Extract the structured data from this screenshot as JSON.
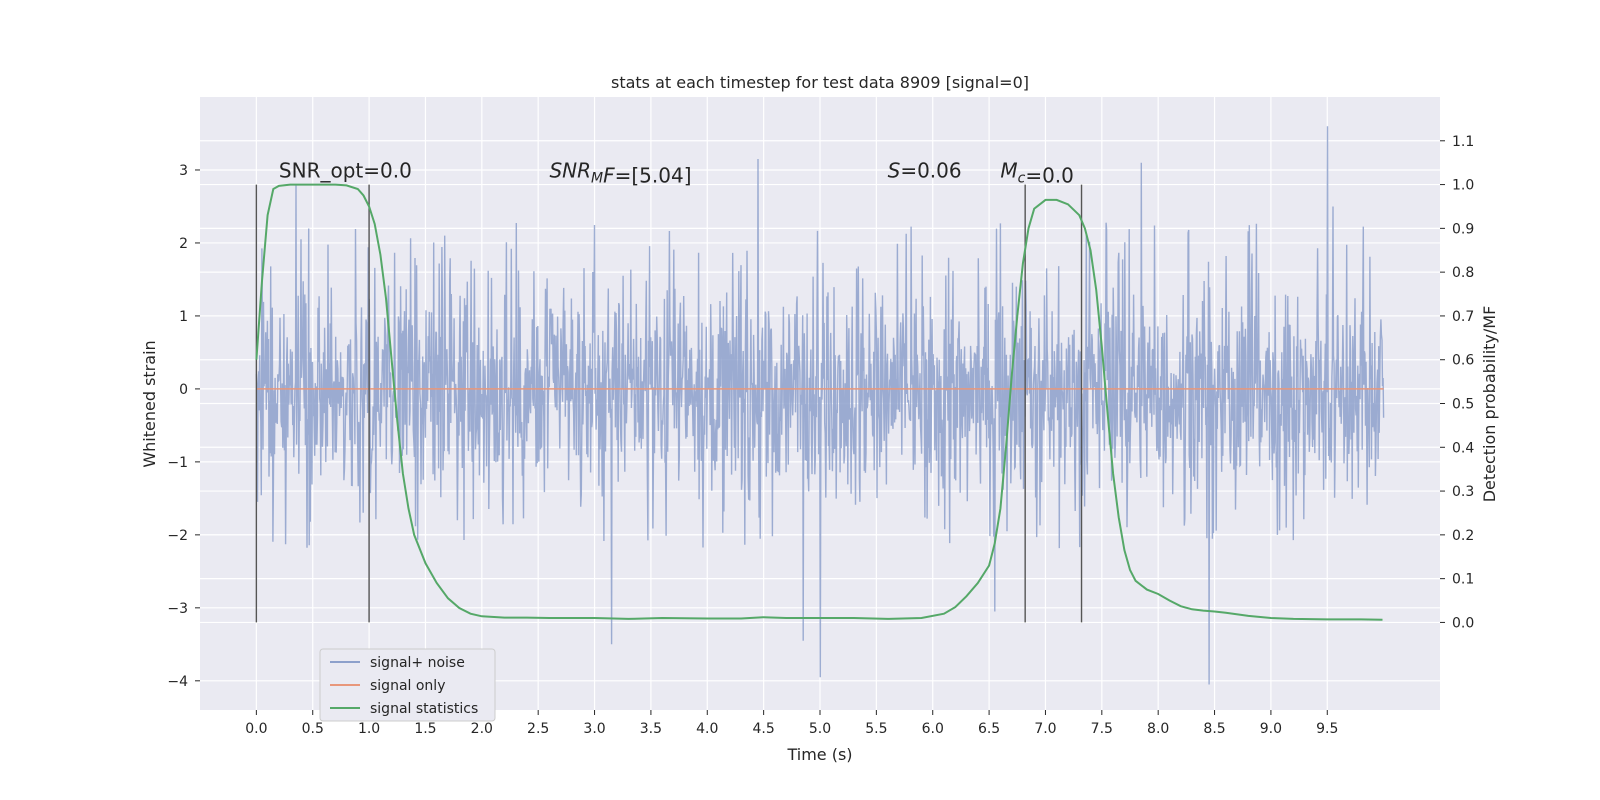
{
  "chart_data": {
    "type": "line",
    "title": "stats at each timestep for test data 8909 [signal=0]",
    "xlabel": "Time (s)",
    "ylabel": "Whitened strain",
    "ylabel_right": "Detection probability/MF",
    "xlim": [
      -0.5,
      10.5
    ],
    "ylim": [
      -4.4,
      4.0
    ],
    "ylim_right": [
      -0.2,
      1.2
    ],
    "x_ticks": [
      0.0,
      0.5,
      1.0,
      1.5,
      2.0,
      2.5,
      3.0,
      3.5,
      4.0,
      4.5,
      5.0,
      5.5,
      6.0,
      6.5,
      7.0,
      7.5,
      8.0,
      8.5,
      9.0,
      9.5
    ],
    "x_tick_labels": [
      "0.0",
      "0.5",
      "1.0",
      "1.5",
      "2.0",
      "2.5",
      "3.0",
      "3.5",
      "4.0",
      "4.5",
      "5.0",
      "5.5",
      "6.0",
      "6.5",
      "7.0",
      "7.5",
      "8.0",
      "8.5",
      "9.0",
      "9.5"
    ],
    "y_ticks": [
      -4,
      -3,
      -2,
      -1,
      0,
      1,
      2,
      3
    ],
    "y_tick_labels": [
      "−4",
      "−3",
      "−2",
      "−1",
      "0",
      "1",
      "2",
      "3"
    ],
    "y_right_ticks": [
      0.0,
      0.1,
      0.2,
      0.3,
      0.4,
      0.5,
      0.6,
      0.7,
      0.8,
      0.9,
      1.0,
      1.1
    ],
    "y_right_tick_labels": [
      "0.0",
      "0.1",
      "0.2",
      "0.3",
      "0.4",
      "0.5",
      "0.6",
      "0.7",
      "0.8",
      "0.9",
      "1.0",
      "1.1"
    ],
    "grid": true,
    "legend_position": "lower-left",
    "series": [
      {
        "name": "signal+ noise",
        "color": "#8da0cb",
        "axis": "left",
        "style": "noise",
        "x_range": [
          0.0,
          10.0
        ],
        "typical_range": [
          -1.5,
          1.6
        ],
        "extremes": [
          {
            "x": 0.35,
            "y": 2.8
          },
          {
            "x": 3.15,
            "y": -3.5
          },
          {
            "x": 4.45,
            "y": 3.15
          },
          {
            "x": 4.85,
            "y": -3.45
          },
          {
            "x": 5.0,
            "y": -3.95
          },
          {
            "x": 6.55,
            "y": -3.05
          },
          {
            "x": 7.85,
            "y": 3.1
          },
          {
            "x": 8.45,
            "y": -4.05
          },
          {
            "x": 9.5,
            "y": 3.6
          },
          {
            "x": 9.55,
            "y": 2.5
          }
        ]
      },
      {
        "name": "signal only",
        "color": "#e8977b",
        "axis": "left",
        "x": [
          0.0,
          10.0
        ],
        "y": [
          0.0,
          0.0
        ]
      },
      {
        "name": "signal statistics",
        "color": "#55a868",
        "axis": "right",
        "x": [
          0.0,
          0.05,
          0.1,
          0.15,
          0.2,
          0.3,
          0.4,
          0.5,
          0.6,
          0.7,
          0.8,
          0.9,
          0.95,
          1.0,
          1.05,
          1.1,
          1.15,
          1.2,
          1.25,
          1.3,
          1.35,
          1.4,
          1.5,
          1.6,
          1.7,
          1.8,
          1.9,
          2.0,
          2.2,
          2.4,
          2.6,
          2.8,
          3.0,
          3.3,
          3.6,
          4.0,
          4.3,
          4.5,
          4.7,
          5.0,
          5.3,
          5.6,
          5.9,
          6.1,
          6.2,
          6.3,
          6.4,
          6.5,
          6.55,
          6.6,
          6.65,
          6.7,
          6.75,
          6.8,
          6.85,
          6.9,
          7.0,
          7.1,
          7.2,
          7.3,
          7.35,
          7.4,
          7.45,
          7.5,
          7.55,
          7.6,
          7.65,
          7.7,
          7.75,
          7.8,
          7.9,
          8.0,
          8.1,
          8.2,
          8.3,
          8.4,
          8.5,
          8.6,
          8.8,
          9.0,
          9.2,
          9.5,
          9.8,
          9.99
        ],
        "y": [
          0.6,
          0.78,
          0.93,
          0.99,
          0.997,
          1.0,
          1.0,
          1.0,
          1.0,
          1.0,
          0.998,
          0.99,
          0.975,
          0.95,
          0.91,
          0.84,
          0.74,
          0.6,
          0.46,
          0.34,
          0.26,
          0.2,
          0.135,
          0.09,
          0.055,
          0.033,
          0.02,
          0.014,
          0.011,
          0.011,
          0.01,
          0.01,
          0.01,
          0.008,
          0.01,
          0.009,
          0.009,
          0.012,
          0.01,
          0.01,
          0.01,
          0.008,
          0.01,
          0.02,
          0.035,
          0.06,
          0.09,
          0.13,
          0.18,
          0.26,
          0.4,
          0.56,
          0.7,
          0.82,
          0.9,
          0.945,
          0.965,
          0.965,
          0.955,
          0.93,
          0.9,
          0.85,
          0.76,
          0.63,
          0.48,
          0.34,
          0.24,
          0.165,
          0.12,
          0.095,
          0.075,
          0.065,
          0.05,
          0.037,
          0.03,
          0.027,
          0.025,
          0.022,
          0.015,
          0.01,
          0.008,
          0.007,
          0.007,
          0.006
        ]
      }
    ],
    "vertical_lines": [
      {
        "x": 0.0,
        "y_top": 2.8,
        "y_bottom": -3.2
      },
      {
        "x": 1.0,
        "y_top": 2.8,
        "y_bottom": -3.2
      },
      {
        "x": 6.82,
        "y_top": 2.8,
        "y_bottom": -3.2
      },
      {
        "x": 7.32,
        "y_top": 2.8,
        "y_bottom": -3.2
      }
    ],
    "annotations": [
      {
        "id": "snr-opt",
        "text": "SNR_opt=0.0",
        "x": 0.2,
        "y": 2.9
      },
      {
        "id": "snr-mf",
        "x": 2.6,
        "y": 2.9,
        "parts": [
          {
            "text": "SNR",
            "italic": true,
            "sub": false
          },
          {
            "text": "M",
            "italic": true,
            "sub": true
          },
          {
            "text": "F",
            "italic": true,
            "sub": false
          },
          {
            "text": "=[5.04]",
            "italic": false,
            "sub": false
          }
        ]
      },
      {
        "id": "s-stat",
        "x": 5.6,
        "y": 2.9,
        "parts": [
          {
            "text": "S",
            "italic": true,
            "sub": false
          },
          {
            "text": "=0.06",
            "italic": false,
            "sub": false
          }
        ]
      },
      {
        "id": "mc",
        "x": 6.6,
        "y": 2.9,
        "parts": [
          {
            "text": "M",
            "italic": true,
            "sub": false
          },
          {
            "text": "c",
            "italic": true,
            "sub": true
          },
          {
            "text": "=0.0",
            "italic": false,
            "sub": false
          }
        ]
      }
    ],
    "legend": [
      {
        "label": "signal+ noise",
        "color": "#8da0cb"
      },
      {
        "label": "signal only",
        "color": "#e8977b"
      },
      {
        "label": "signal statistics",
        "color": "#55a868"
      }
    ],
    "colors": {
      "plot_background": "#eaeaf2",
      "grid": "#ffffff",
      "vertical_line": "#555555"
    }
  }
}
